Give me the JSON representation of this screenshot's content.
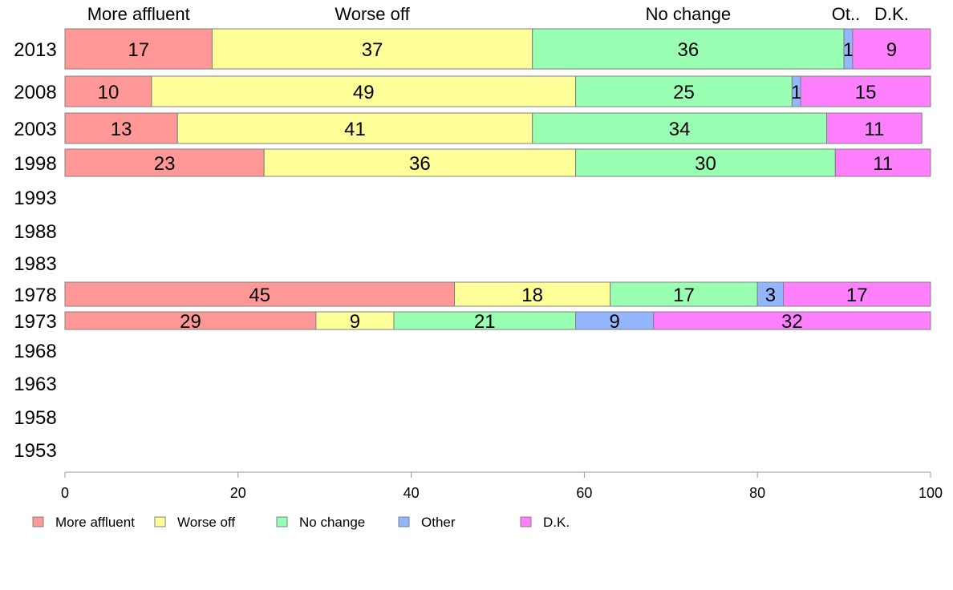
{
  "chart_data": {
    "type": "bar",
    "orientation": "horizontal",
    "stacked": true,
    "categories": [
      "2013",
      "2008",
      "2003",
      "1998",
      "1993",
      "1988",
      "1983",
      "1978",
      "1973",
      "1968",
      "1963",
      "1958",
      "1953"
    ],
    "series": [
      {
        "name": "More affluent",
        "top_label": "More affluent",
        "color": "#ff9896",
        "values": [
          17,
          10,
          13,
          23,
          null,
          null,
          null,
          45,
          29,
          null,
          null,
          null,
          null
        ]
      },
      {
        "name": "Worse off",
        "top_label": "Worse off",
        "color": "#ffff99",
        "values": [
          37,
          49,
          41,
          36,
          null,
          null,
          null,
          18,
          9,
          null,
          null,
          null,
          null
        ]
      },
      {
        "name": "No change",
        "top_label": "No change",
        "color": "#98ffb3",
        "values": [
          36,
          25,
          34,
          30,
          null,
          null,
          null,
          17,
          21,
          null,
          null,
          null,
          null
        ]
      },
      {
        "name": "Other",
        "top_label": "Ot..",
        "color": "#93b6ff",
        "values": [
          1,
          1,
          0,
          0,
          null,
          null,
          null,
          3,
          9,
          null,
          null,
          null,
          null
        ]
      },
      {
        "name": "D.K.",
        "top_label": "D.K.",
        "color": "#ff80ff",
        "values": [
          9,
          15,
          11,
          11,
          null,
          null,
          null,
          17,
          32,
          null,
          null,
          null,
          null
        ]
      }
    ],
    "xlim": [
      0,
      100
    ],
    "xticks": [
      0,
      20,
      40,
      60,
      80,
      100
    ],
    "grid": false,
    "legend_position": "bottom"
  }
}
